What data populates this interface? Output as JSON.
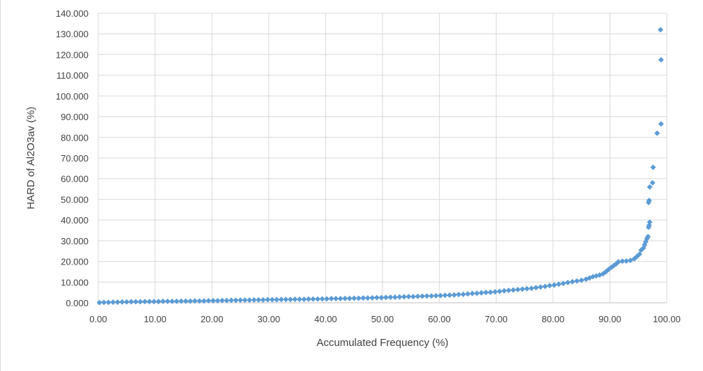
{
  "chart_data": {
    "type": "scatter",
    "xlabel": "Accumulated Frequency (%)",
    "ylabel": "HARD of Al2O3av (%)",
    "xlim": [
      0,
      100
    ],
    "ylim": [
      0,
      140
    ],
    "x_ticks": [
      "0.00",
      "10.00",
      "20.00",
      "30.00",
      "40.00",
      "50.00",
      "60.00",
      "70.00",
      "80.00",
      "90.00",
      "100.00"
    ],
    "y_ticks": [
      "0.000",
      "10.000",
      "20.000",
      "30.000",
      "40.000",
      "50.000",
      "60.000",
      "70.000",
      "80.000",
      "90.000",
      "100.000",
      "110.000",
      "120.000",
      "130.000",
      "140.000"
    ],
    "grid": true,
    "marker_color": "#5b9bd5",
    "marker": "diamond",
    "series": [
      {
        "points": [
          [
            0.2,
            0.1
          ],
          [
            1.0,
            0.2
          ],
          [
            1.8,
            0.2
          ],
          [
            2.6,
            0.3
          ],
          [
            3.4,
            0.3
          ],
          [
            4.2,
            0.4
          ],
          [
            5.0,
            0.4
          ],
          [
            5.8,
            0.5
          ],
          [
            6.6,
            0.5
          ],
          [
            7.4,
            0.5
          ],
          [
            8.2,
            0.6
          ],
          [
            9.0,
            0.6
          ],
          [
            9.8,
            0.6
          ],
          [
            10.6,
            0.6
          ],
          [
            11.4,
            0.7
          ],
          [
            12.2,
            0.7
          ],
          [
            13.0,
            0.7
          ],
          [
            13.8,
            0.7
          ],
          [
            14.6,
            0.8
          ],
          [
            15.4,
            0.8
          ],
          [
            16.2,
            0.8
          ],
          [
            17.0,
            0.9
          ],
          [
            17.8,
            0.9
          ],
          [
            18.6,
            0.9
          ],
          [
            19.4,
            1.0
          ],
          [
            20.2,
            1.0
          ],
          [
            21.0,
            1.0
          ],
          [
            21.8,
            1.1
          ],
          [
            22.6,
            1.1
          ],
          [
            23.4,
            1.2
          ],
          [
            24.2,
            1.2
          ],
          [
            25.0,
            1.3
          ],
          [
            25.8,
            1.3
          ],
          [
            26.6,
            1.3
          ],
          [
            27.4,
            1.4
          ],
          [
            28.2,
            1.4
          ],
          [
            29.0,
            1.4
          ],
          [
            29.8,
            1.5
          ],
          [
            30.6,
            1.5
          ],
          [
            31.4,
            1.5
          ],
          [
            32.2,
            1.6
          ],
          [
            33.0,
            1.6
          ],
          [
            33.8,
            1.6
          ],
          [
            34.6,
            1.7
          ],
          [
            35.4,
            1.7
          ],
          [
            36.2,
            1.7
          ],
          [
            37.0,
            1.8
          ],
          [
            37.8,
            1.8
          ],
          [
            38.6,
            1.8
          ],
          [
            39.4,
            1.9
          ],
          [
            40.2,
            1.9
          ],
          [
            41.0,
            2.0
          ],
          [
            41.8,
            2.0
          ],
          [
            42.6,
            2.0
          ],
          [
            43.4,
            2.1
          ],
          [
            44.2,
            2.1
          ],
          [
            45.0,
            2.2
          ],
          [
            45.8,
            2.2
          ],
          [
            46.6,
            2.3
          ],
          [
            47.4,
            2.3
          ],
          [
            48.2,
            2.4
          ],
          [
            49.0,
            2.5
          ],
          [
            49.8,
            2.5
          ],
          [
            50.6,
            2.6
          ],
          [
            51.4,
            2.7
          ],
          [
            52.2,
            2.7
          ],
          [
            53.0,
            2.8
          ],
          [
            53.8,
            2.9
          ],
          [
            54.6,
            3.0
          ],
          [
            55.4,
            3.0
          ],
          [
            56.2,
            3.1
          ],
          [
            57.0,
            3.2
          ],
          [
            57.8,
            3.3
          ],
          [
            58.6,
            3.3
          ],
          [
            59.4,
            3.4
          ],
          [
            60.2,
            3.5
          ],
          [
            61.0,
            3.6
          ],
          [
            61.8,
            3.7
          ],
          [
            62.6,
            3.8
          ],
          [
            63.4,
            4.0
          ],
          [
            64.2,
            4.1
          ],
          [
            65.0,
            4.3
          ],
          [
            65.8,
            4.5
          ],
          [
            66.6,
            4.6
          ],
          [
            67.4,
            4.8
          ],
          [
            68.2,
            5.0
          ],
          [
            69.0,
            5.1
          ],
          [
            69.8,
            5.3
          ],
          [
            70.6,
            5.5
          ],
          [
            71.4,
            5.8
          ],
          [
            72.2,
            6.0
          ],
          [
            73.0,
            6.2
          ],
          [
            73.8,
            6.4
          ],
          [
            74.6,
            6.6
          ],
          [
            75.4,
            6.8
          ],
          [
            76.2,
            7.0
          ],
          [
            77.0,
            7.3
          ],
          [
            77.8,
            7.6
          ],
          [
            78.6,
            7.9
          ],
          [
            79.4,
            8.3
          ],
          [
            80.2,
            8.6
          ],
          [
            81.0,
            9.0
          ],
          [
            81.8,
            9.4
          ],
          [
            82.6,
            9.8
          ],
          [
            83.4,
            10.2
          ],
          [
            84.2,
            10.5
          ],
          [
            85.0,
            10.9
          ],
          [
            85.8,
            11.4
          ],
          [
            86.4,
            12.0
          ],
          [
            87.0,
            12.6
          ],
          [
            87.6,
            13.0
          ],
          [
            88.2,
            13.4
          ],
          [
            88.8,
            14.0
          ],
          [
            89.3,
            15.0
          ],
          [
            89.8,
            16.2
          ],
          [
            90.3,
            17.2
          ],
          [
            90.7,
            18.0
          ],
          [
            91.1,
            18.8
          ],
          [
            91.5,
            19.8
          ],
          [
            92.2,
            20.1
          ],
          [
            92.9,
            20.2
          ],
          [
            93.6,
            20.5
          ],
          [
            94.3,
            21.3
          ],
          [
            94.8,
            22.5
          ],
          [
            95.2,
            23.5
          ],
          [
            95.5,
            25.5
          ],
          [
            95.9,
            26.5
          ],
          [
            96.1,
            28.0
          ],
          [
            96.3,
            29.5
          ],
          [
            96.5,
            31.0
          ],
          [
            96.7,
            32.0
          ],
          [
            96.8,
            36.5
          ],
          [
            96.9,
            37.5
          ],
          [
            97.0,
            39.0
          ],
          [
            96.8,
            48.5
          ],
          [
            96.9,
            49.5
          ],
          [
            97.0,
            56.0
          ],
          [
            97.5,
            58.0
          ],
          [
            97.6,
            65.5
          ],
          [
            98.3,
            82.0
          ],
          [
            99.0,
            86.5
          ],
          [
            99.0,
            117.5
          ],
          [
            98.9,
            132.0
          ]
        ]
      }
    ]
  }
}
